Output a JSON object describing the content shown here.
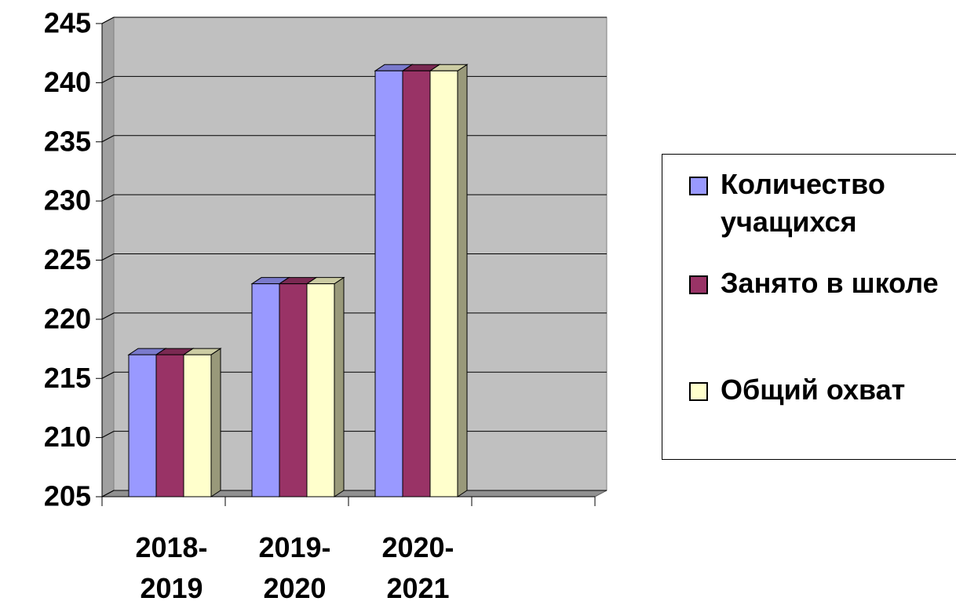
{
  "chart_data": {
    "type": "bar3d",
    "categories": [
      "2018-2019",
      "2019-2020",
      "2020-2021",
      null
    ],
    "series": [
      {
        "name": "Количество учащихся",
        "color": "#9999ff",
        "values": [
          217,
          223,
          241,
          null
        ]
      },
      {
        "name": "Занято в школе",
        "color": "#993366",
        "values": [
          217,
          223,
          241,
          null
        ]
      },
      {
        "name": "Общий охват",
        "color": "#ffffcc",
        "values": [
          217,
          223,
          241,
          null
        ]
      }
    ],
    "ylim": [
      205,
      245
    ],
    "yticks": [
      205,
      210,
      215,
      220,
      225,
      230,
      235,
      240,
      245
    ],
    "grid": true,
    "legend": "right"
  }
}
